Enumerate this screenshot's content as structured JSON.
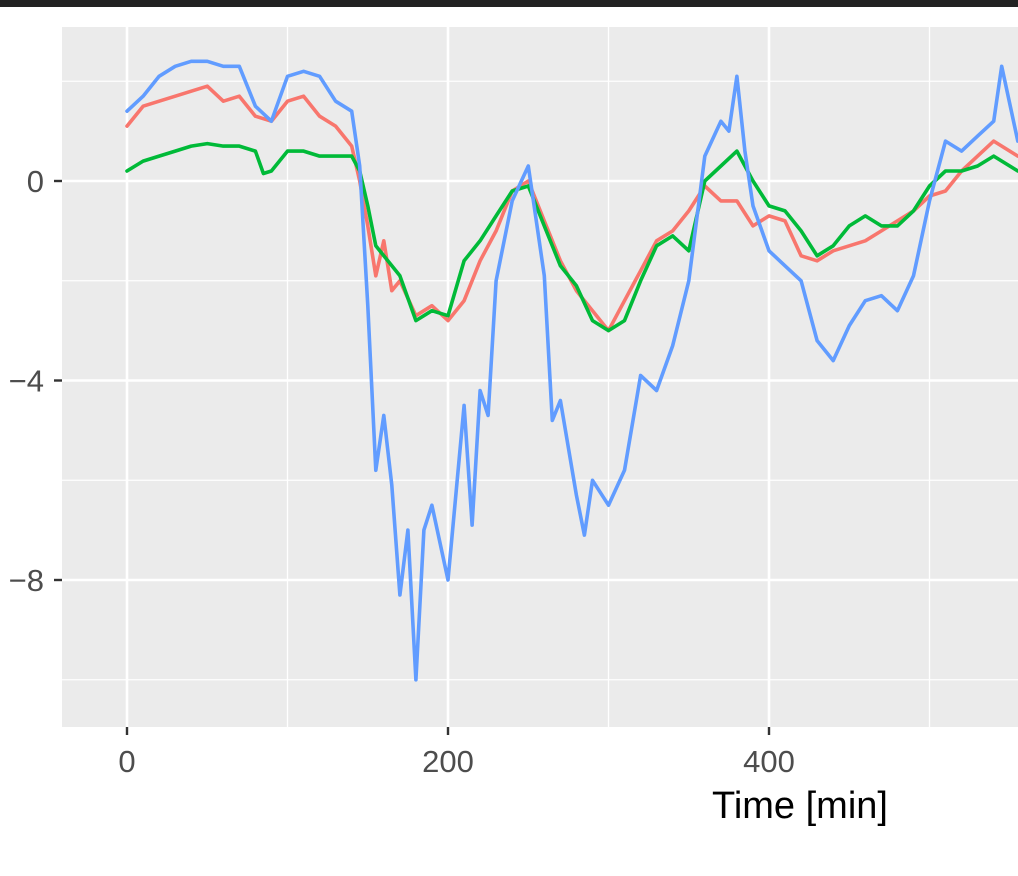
{
  "chart_data": {
    "type": "line",
    "title": "",
    "xlabel": "Time [min]",
    "ylabel": "",
    "xlim": [
      -40,
      555
    ],
    "ylim": [
      -10.9,
      3.1
    ],
    "x_ticks": [
      0,
      200,
      400
    ],
    "x_tick_labels": [
      "0",
      "200",
      "400"
    ],
    "y_ticks": [
      0,
      -4,
      -8
    ],
    "y_tick_labels": [
      "0",
      "−4",
      "−8"
    ],
    "grid": true,
    "panel_background": "#ebebeb",
    "series": [
      {
        "color": "#f8766d",
        "x": [
          0,
          10,
          20,
          30,
          40,
          50,
          60,
          70,
          80,
          90,
          100,
          110,
          120,
          130,
          140,
          145,
          150,
          155,
          160,
          165,
          170,
          180,
          190,
          200,
          210,
          220,
          230,
          240,
          250,
          260,
          270,
          280,
          290,
          300,
          310,
          320,
          330,
          340,
          350,
          360,
          370,
          380,
          390,
          400,
          410,
          420,
          430,
          440,
          450,
          460,
          470,
          480,
          490,
          500,
          510,
          520,
          530,
          540,
          555
        ],
        "y": [
          1.1,
          1.5,
          1.6,
          1.7,
          1.8,
          1.9,
          1.6,
          1.7,
          1.3,
          1.2,
          1.6,
          1.7,
          1.3,
          1.1,
          0.7,
          0.0,
          -0.9,
          -1.9,
          -1.2,
          -2.2,
          -2.0,
          -2.7,
          -2.5,
          -2.8,
          -2.4,
          -1.6,
          -1.0,
          -0.2,
          0.0,
          -0.8,
          -1.6,
          -2.2,
          -2.6,
          -3.0,
          -2.4,
          -1.8,
          -1.2,
          -1.0,
          -0.6,
          -0.1,
          -0.4,
          -0.4,
          -0.9,
          -0.7,
          -0.8,
          -1.5,
          -1.6,
          -1.4,
          -1.3,
          -1.2,
          -1.0,
          -0.8,
          -0.6,
          -0.3,
          -0.2,
          0.2,
          0.5,
          0.8,
          0.5
        ]
      },
      {
        "color": "#00ba38",
        "x": [
          0,
          10,
          20,
          30,
          40,
          50,
          60,
          70,
          80,
          85,
          90,
          100,
          110,
          120,
          130,
          140,
          145,
          150,
          155,
          160,
          170,
          180,
          190,
          200,
          210,
          220,
          230,
          240,
          250,
          260,
          270,
          280,
          290,
          300,
          310,
          320,
          330,
          340,
          350,
          360,
          370,
          380,
          390,
          400,
          410,
          420,
          430,
          440,
          450,
          460,
          470,
          480,
          490,
          500,
          510,
          520,
          530,
          540,
          555
        ],
        "y": [
          0.2,
          0.4,
          0.5,
          0.6,
          0.7,
          0.75,
          0.7,
          0.7,
          0.6,
          0.15,
          0.2,
          0.6,
          0.6,
          0.5,
          0.5,
          0.5,
          0.2,
          -0.5,
          -1.3,
          -1.5,
          -1.9,
          -2.8,
          -2.6,
          -2.7,
          -1.6,
          -1.2,
          -0.7,
          -0.2,
          -0.1,
          -0.9,
          -1.7,
          -2.1,
          -2.8,
          -3.0,
          -2.8,
          -2.0,
          -1.3,
          -1.1,
          -1.4,
          0.0,
          0.3,
          0.6,
          0.0,
          -0.5,
          -0.6,
          -1.0,
          -1.5,
          -1.3,
          -0.9,
          -0.7,
          -0.9,
          -0.9,
          -0.6,
          -0.1,
          0.2,
          0.2,
          0.3,
          0.5,
          0.2
        ]
      },
      {
        "color": "#619cff",
        "x": [
          0,
          10,
          20,
          30,
          40,
          50,
          60,
          70,
          80,
          90,
          100,
          110,
          120,
          130,
          140,
          145,
          150,
          155,
          160,
          165,
          170,
          175,
          180,
          185,
          190,
          200,
          210,
          215,
          220,
          225,
          230,
          240,
          250,
          260,
          265,
          270,
          280,
          285,
          290,
          300,
          310,
          320,
          330,
          340,
          350,
          360,
          370,
          375,
          380,
          385,
          390,
          400,
          410,
          420,
          430,
          440,
          450,
          460,
          470,
          480,
          490,
          500,
          510,
          520,
          530,
          540,
          545,
          555
        ],
        "y": [
          1.4,
          1.7,
          2.1,
          2.3,
          2.4,
          2.4,
          2.3,
          2.3,
          1.5,
          1.2,
          2.1,
          2.2,
          2.1,
          1.6,
          1.4,
          0.3,
          -2.5,
          -5.8,
          -4.7,
          -6.1,
          -8.3,
          -7.0,
          -10.0,
          -7.0,
          -6.5,
          -8.0,
          -4.5,
          -6.9,
          -4.2,
          -4.7,
          -2.0,
          -0.4,
          0.3,
          -1.9,
          -4.8,
          -4.4,
          -6.3,
          -7.1,
          -6.0,
          -6.5,
          -5.8,
          -3.9,
          -4.2,
          -3.3,
          -2.0,
          0.5,
          1.2,
          1.0,
          2.1,
          0.6,
          -0.5,
          -1.4,
          -1.7,
          -2.0,
          -3.2,
          -3.6,
          -2.9,
          -2.4,
          -2.3,
          -2.6,
          -1.9,
          -0.4,
          0.8,
          0.6,
          0.9,
          1.2,
          2.3,
          0.8
        ]
      }
    ]
  }
}
